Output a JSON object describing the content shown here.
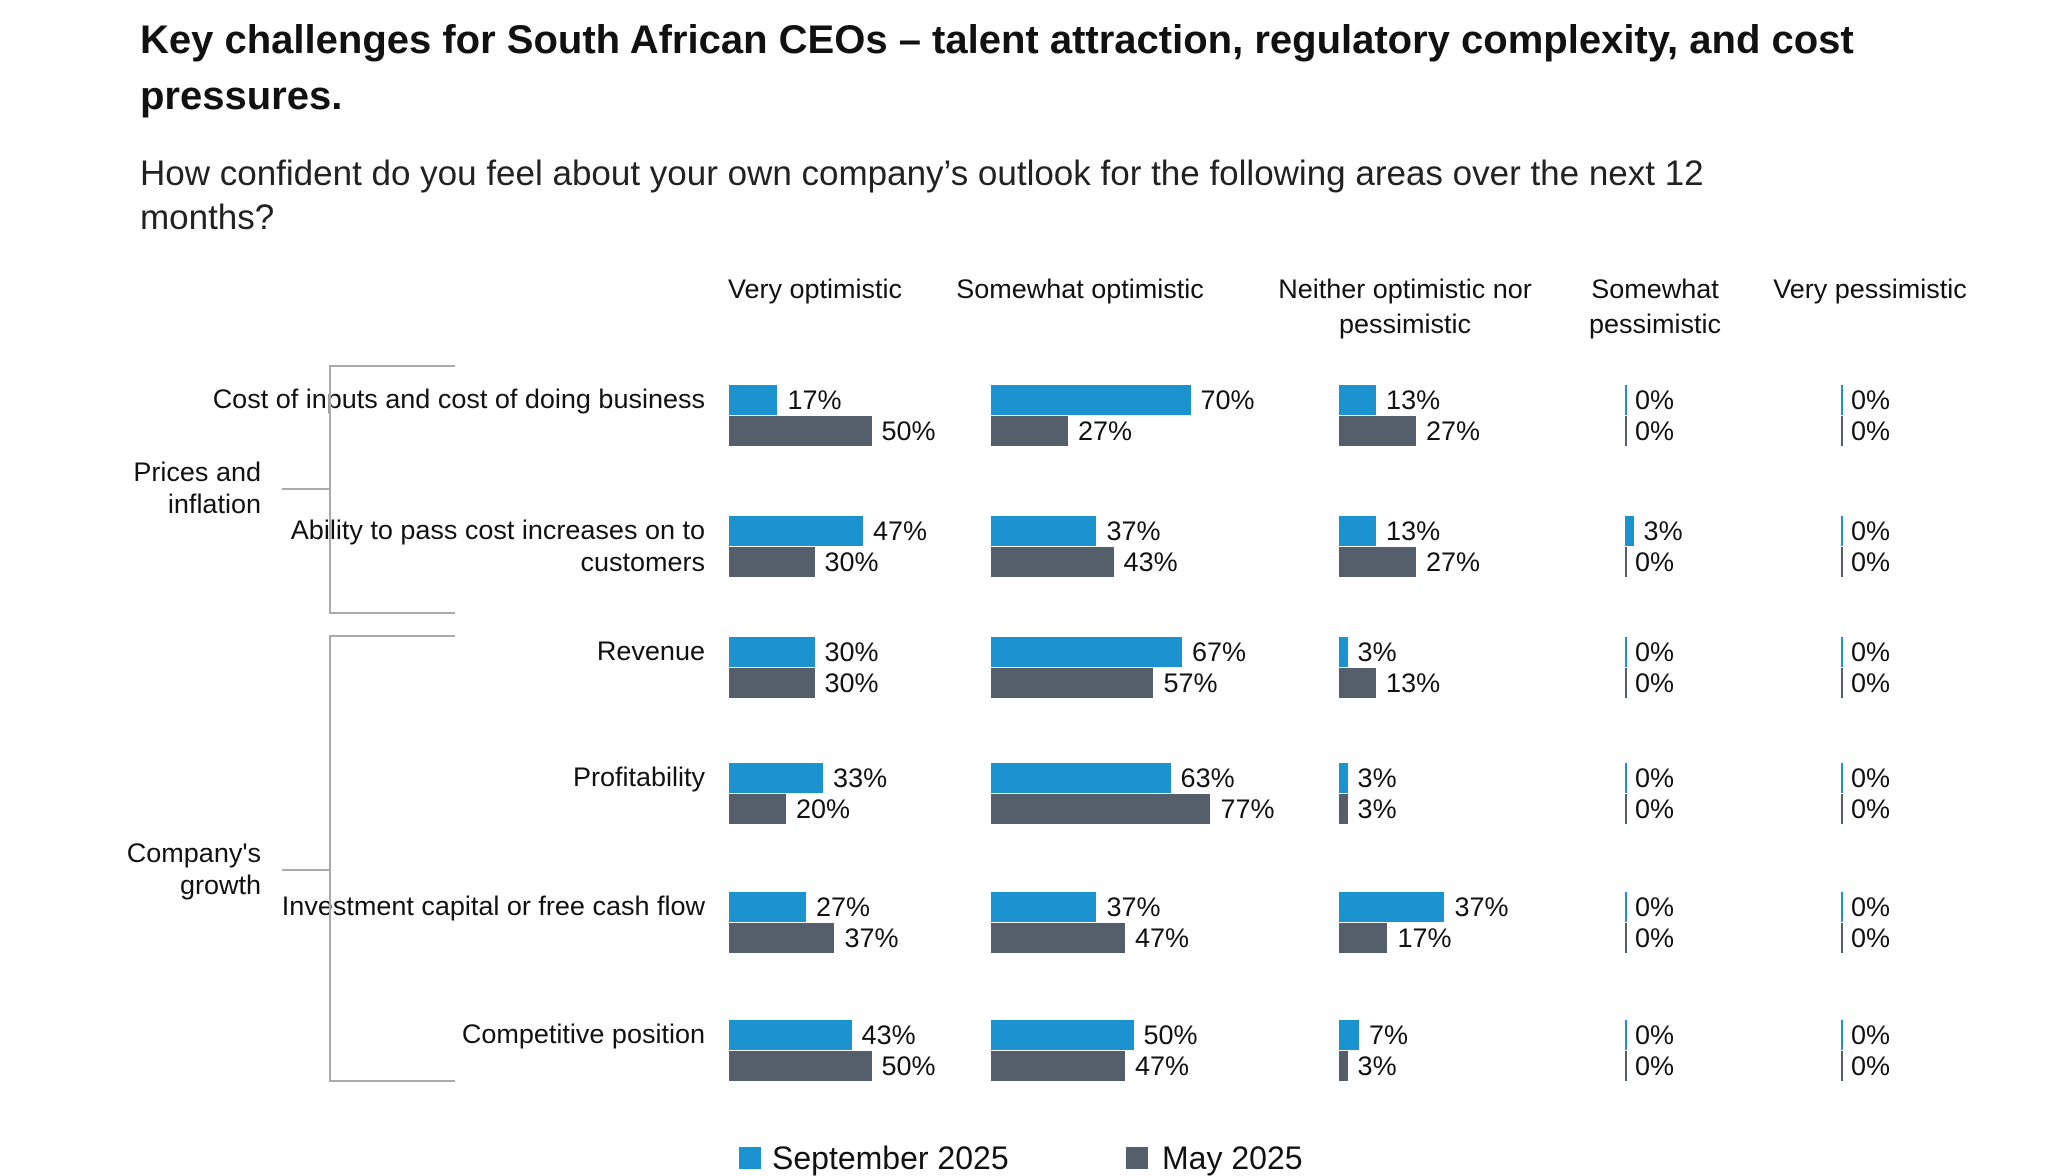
{
  "title": "Key challenges for South African CEOs – talent attraction, regulatory complexity, and cost pressures.",
  "subtitle": "How confident do you feel about your own company’s outlook for the following areas over the next 12 months?",
  "colors": {
    "september": "#1b93d0",
    "may": "#555f6b"
  },
  "chart_data": {
    "type": "bar",
    "orientation": "horizontal-grouped-small-multiples",
    "columns": [
      "Very optimistic",
      "Somewhat optimistic",
      "Neither optimistic nor pessimistic",
      "Somewhat pessimistic",
      "Very pessimistic"
    ],
    "groups": [
      {
        "label": "Prices and inflation",
        "rows": [
          0,
          1
        ]
      },
      {
        "label": "Company's growth",
        "rows": [
          2,
          3,
          4,
          5
        ]
      }
    ],
    "categories": [
      "Cost of inputs and cost of doing business",
      "Ability to pass cost increases on to customers",
      "Revenue",
      "Profitability",
      "Investment capital or free cash flow",
      "Competitive position"
    ],
    "series": [
      {
        "name": "September 2025",
        "values": [
          [
            17,
            70,
            13,
            0,
            0
          ],
          [
            47,
            37,
            13,
            3,
            0
          ],
          [
            30,
            67,
            3,
            0,
            0
          ],
          [
            33,
            63,
            3,
            0,
            0
          ],
          [
            27,
            37,
            37,
            0,
            0
          ],
          [
            43,
            50,
            7,
            0,
            0
          ]
        ]
      },
      {
        "name": "May 2025",
        "values": [
          [
            50,
            27,
            27,
            0,
            0
          ],
          [
            30,
            43,
            27,
            0,
            0
          ],
          [
            30,
            57,
            13,
            0,
            0
          ],
          [
            20,
            77,
            3,
            0,
            0
          ],
          [
            37,
            47,
            17,
            0,
            0
          ],
          [
            50,
            47,
            3,
            0,
            0
          ]
        ]
      }
    ],
    "unit": "%"
  }
}
